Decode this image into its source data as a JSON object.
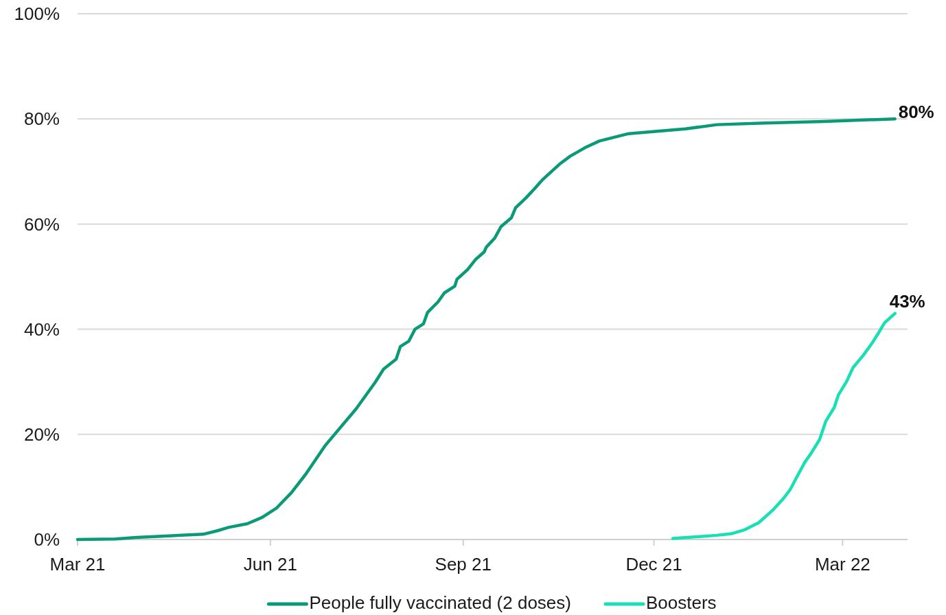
{
  "chart_data": {
    "type": "line",
    "xlim": [
      "2021-03-01",
      "2022-04-01"
    ],
    "xticks": [
      {
        "value": "2021-03-01",
        "label": "Mar 21"
      },
      {
        "value": "2021-06-01",
        "label": "Jun 21"
      },
      {
        "value": "2021-09-01",
        "label": "Sep 21"
      },
      {
        "value": "2021-12-01",
        "label": "Dec 21"
      },
      {
        "value": "2022-03-01",
        "label": "Mar 22"
      }
    ],
    "ylim": [
      0,
      100
    ],
    "yticks": [
      {
        "value": 0,
        "label": "0%"
      },
      {
        "value": 20,
        "label": "20%"
      },
      {
        "value": 40,
        "label": "40%"
      },
      {
        "value": 60,
        "label": "60%"
      },
      {
        "value": 80,
        "label": "80%"
      },
      {
        "value": 100,
        "label": "100%"
      }
    ],
    "grid": "y",
    "legend": "bottom",
    "line_style": "solid",
    "series": [
      {
        "name": "People fully vaccinated (2 doses)",
        "color": "#0b9a78",
        "x": [
          "2021-03-01",
          "2021-03-19",
          "2021-03-29",
          "2021-04-30",
          "2021-05-07",
          "2021-05-12",
          "2021-05-21",
          "2021-05-28",
          "2021-06-04",
          "2021-06-11",
          "2021-06-18",
          "2021-06-27",
          "2021-07-12",
          "2021-07-21",
          "2021-07-25",
          "2021-07-31",
          "2021-08-02",
          "2021-08-06",
          "2021-08-09",
          "2021-08-13",
          "2021-08-15",
          "2021-08-20",
          "2021-08-23",
          "2021-08-28",
          "2021-08-29",
          "2021-09-03",
          "2021-09-07",
          "2021-09-11",
          "2021-09-12",
          "2021-09-16",
          "2021-09-19",
          "2021-09-24",
          "2021-09-26",
          "2021-10-01",
          "2021-10-05",
          "2021-10-09",
          "2021-10-17",
          "2021-10-22",
          "2021-10-29",
          "2021-11-05",
          "2021-11-19",
          "2021-12-16",
          "2021-12-31",
          "2022-01-23",
          "2022-02-20",
          "2022-03-26"
        ],
        "values": [
          0,
          0.1,
          0.4,
          1.0,
          1.7,
          2.3,
          3.0,
          4.2,
          6.0,
          8.9,
          12.5,
          17.8,
          24.9,
          29.9,
          32.4,
          34.3,
          36.7,
          37.7,
          40.0,
          41.0,
          43.2,
          45.2,
          46.9,
          48.2,
          49.5,
          51.3,
          53.3,
          54.7,
          55.6,
          57.3,
          59.5,
          61.2,
          63.1,
          65.0,
          66.7,
          68.5,
          71.4,
          72.9,
          74.5,
          75.8,
          77.2,
          78.1,
          78.9,
          79.2,
          79.5,
          80
        ],
        "value_labels": [
          null,
          null,
          null,
          null,
          null,
          null,
          null,
          null,
          null,
          null,
          null,
          null,
          null,
          null,
          null,
          null,
          null,
          null,
          null,
          null,
          null,
          null,
          null,
          null,
          null,
          null,
          null,
          null,
          null,
          null,
          null,
          null,
          null,
          null,
          null,
          null,
          null,
          null,
          null,
          null,
          null,
          null,
          null,
          null,
          null,
          "80%"
        ]
      },
      {
        "name": "Boosters",
        "color": "#19e0b4",
        "x": [
          "2021-12-10",
          "2021-12-31",
          "2022-01-07",
          "2022-01-13",
          "2022-01-20",
          "2022-01-27",
          "2022-02-01",
          "2022-02-04",
          "2022-02-08",
          "2022-02-11",
          "2022-02-14",
          "2022-02-18",
          "2022-02-21",
          "2022-02-25",
          "2022-02-27",
          "2022-03-03",
          "2022-03-06",
          "2022-03-11",
          "2022-03-15",
          "2022-03-18",
          "2022-03-21",
          "2022-03-26"
        ],
        "values": [
          0.2,
          0.8,
          1.1,
          1.8,
          3.2,
          5.7,
          7.9,
          9.5,
          12.5,
          14.7,
          16.4,
          19.0,
          22.5,
          25.1,
          27.5,
          30.1,
          32.7,
          35.1,
          37.3,
          39.2,
          41.2,
          43
        ],
        "value_labels": [
          null,
          null,
          null,
          null,
          null,
          null,
          null,
          null,
          null,
          null,
          null,
          null,
          null,
          null,
          null,
          null,
          null,
          null,
          null,
          null,
          null,
          "43%"
        ]
      }
    ]
  }
}
